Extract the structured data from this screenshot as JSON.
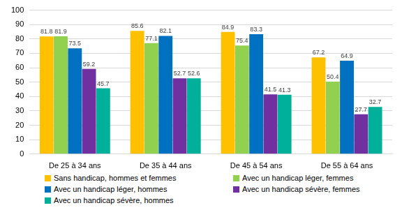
{
  "chart_data": {
    "type": "bar",
    "categories": [
      "De 25 à 34 ans",
      "De 35 à 44 ans",
      "De 45 à 54 ans",
      "De 55 à 64 ans"
    ],
    "series": [
      {
        "name": "Sans handicap, hommes et femmes",
        "color": "#ffc000",
        "values": [
          81.8,
          85.6,
          84.9,
          67.2
        ]
      },
      {
        "name": "Avec un handicap léger, femmes",
        "color": "#92d050",
        "values": [
          81.9,
          77.1,
          75.4,
          50.4
        ]
      },
      {
        "name": "Avec un handicap léger, hommes",
        "color": "#0070c0",
        "values": [
          73.5,
          82.1,
          83.3,
          64.9
        ]
      },
      {
        "name": "Avec un handicap sévère, femmes",
        "color": "#7030a0",
        "values": [
          59.2,
          52.7,
          41.5,
          27.7
        ]
      },
      {
        "name": "Avec un handicap sévère, hommes",
        "color": "#00b09a",
        "values": [
          45.7,
          52.6,
          41.3,
          32.7
        ]
      }
    ],
    "ylim": [
      0,
      100
    ],
    "yticks": [
      0,
      10,
      20,
      30,
      40,
      50,
      60,
      70,
      80,
      90,
      100
    ],
    "grid": true,
    "legend": "bottom",
    "data_labels": true
  }
}
